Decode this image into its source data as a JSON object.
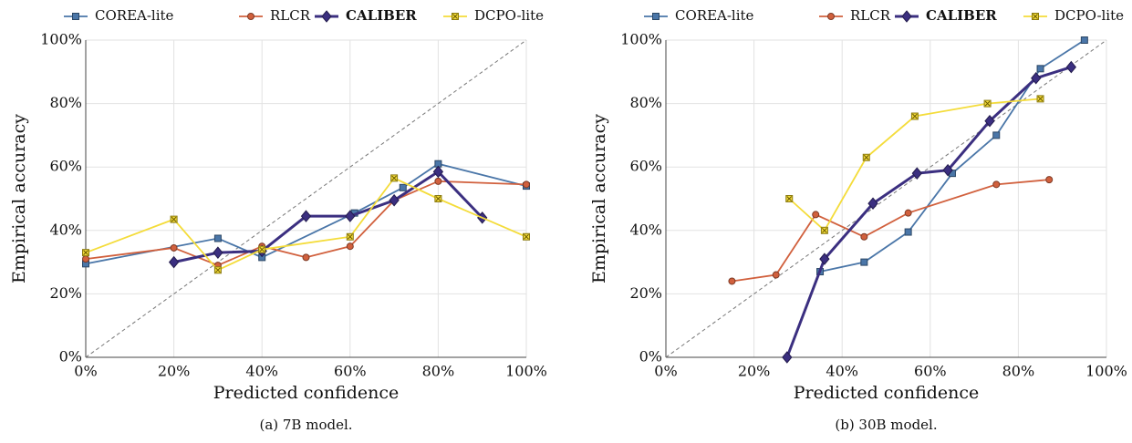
{
  "chart_data": [
    {
      "type": "line",
      "caption": "(a) 7B model.",
      "xlabel": "Predicted confidence",
      "ylabel": "Empirical accuracy",
      "xlim": [
        0,
        100
      ],
      "ylim": [
        0,
        100
      ],
      "grid": true,
      "diagonal": true,
      "xticks": [
        {
          "value": 0,
          "label": "0%"
        },
        {
          "value": 20,
          "label": "20%"
        },
        {
          "value": 40,
          "label": "40%"
        },
        {
          "value": 60,
          "label": "60%"
        },
        {
          "value": 80,
          "label": "80%"
        },
        {
          "value": 100,
          "label": "100%"
        }
      ],
      "yticks": [
        {
          "value": 0,
          "label": "0%"
        },
        {
          "value": 20,
          "label": "20%"
        },
        {
          "value": 40,
          "label": "40%"
        },
        {
          "value": 60,
          "label": "60%"
        },
        {
          "value": 80,
          "label": "80%"
        },
        {
          "value": 100,
          "label": "100%"
        }
      ],
      "series": [
        {
          "name": "COREA-lite",
          "color": "#4a76a8",
          "marker": "square",
          "x": [
            0,
            30,
            40,
            61,
            72,
            80,
            100
          ],
          "values": [
            29.5,
            37.5,
            31.5,
            45.5,
            53.5,
            61,
            54
          ]
        },
        {
          "name": "RLCR",
          "color": "#d1603d",
          "marker": "circle",
          "x": [
            0,
            20,
            30,
            40,
            50,
            60,
            70,
            80,
            100
          ],
          "values": [
            31,
            34.5,
            29,
            35,
            31.5,
            35,
            49.5,
            55.5,
            54.5
          ]
        },
        {
          "name": "CALIBER",
          "color": "#3b2f80",
          "marker": "diamond",
          "bold": true,
          "x": [
            20,
            30,
            40,
            50,
            60,
            70,
            80,
            90
          ],
          "values": [
            30,
            33,
            33.5,
            44.5,
            44.5,
            49.5,
            58.5,
            44
          ]
        },
        {
          "name": "DCPO-lite",
          "color": "#f4dc3a",
          "marker": "xsquare",
          "x": [
            0,
            20,
            30,
            40,
            60,
            70,
            80,
            100
          ],
          "values": [
            33,
            43.5,
            27.5,
            34,
            38,
            56.5,
            50,
            38
          ]
        }
      ]
    },
    {
      "type": "line",
      "caption": "(b) 30B model.",
      "xlabel": "Predicted confidence",
      "ylabel": "Empirical accuracy",
      "xlim": [
        0,
        100
      ],
      "ylim": [
        0,
        100
      ],
      "grid": true,
      "diagonal": true,
      "xticks": [
        {
          "value": 0,
          "label": "0%"
        },
        {
          "value": 20,
          "label": "20%"
        },
        {
          "value": 40,
          "label": "40%"
        },
        {
          "value": 60,
          "label": "60%"
        },
        {
          "value": 80,
          "label": "80%"
        },
        {
          "value": 100,
          "label": "100%"
        }
      ],
      "yticks": [
        {
          "value": 0,
          "label": "0%"
        },
        {
          "value": 20,
          "label": "20%"
        },
        {
          "value": 40,
          "label": "40%"
        },
        {
          "value": 60,
          "label": "60%"
        },
        {
          "value": 80,
          "label": "80%"
        },
        {
          "value": 100,
          "label": "100%"
        }
      ],
      "series": [
        {
          "name": "COREA-lite",
          "color": "#4a76a8",
          "marker": "square",
          "x": [
            35,
            45,
            55,
            65,
            75,
            85,
            95
          ],
          "values": [
            27,
            30,
            39.5,
            58,
            70,
            91,
            100
          ]
        },
        {
          "name": "RLCR",
          "color": "#d1603d",
          "marker": "circle",
          "x": [
            15,
            25,
            34,
            45,
            55,
            75,
            87
          ],
          "values": [
            24,
            26,
            45,
            38,
            45.5,
            54.5,
            56
          ]
        },
        {
          "name": "CALIBER",
          "color": "#3b2f80",
          "marker": "diamond",
          "bold": true,
          "x": [
            27.5,
            36,
            47,
            57,
            64,
            73.5,
            84,
            92
          ],
          "values": [
            0,
            31,
            48.5,
            58,
            59,
            74.5,
            88,
            91.5
          ]
        },
        {
          "name": "DCPO-lite",
          "color": "#f4dc3a",
          "marker": "xsquare",
          "x": [
            28,
            36,
            45.5,
            56.5,
            73,
            85
          ],
          "values": [
            50,
            40,
            63,
            76,
            80,
            81.5
          ]
        }
      ]
    }
  ]
}
